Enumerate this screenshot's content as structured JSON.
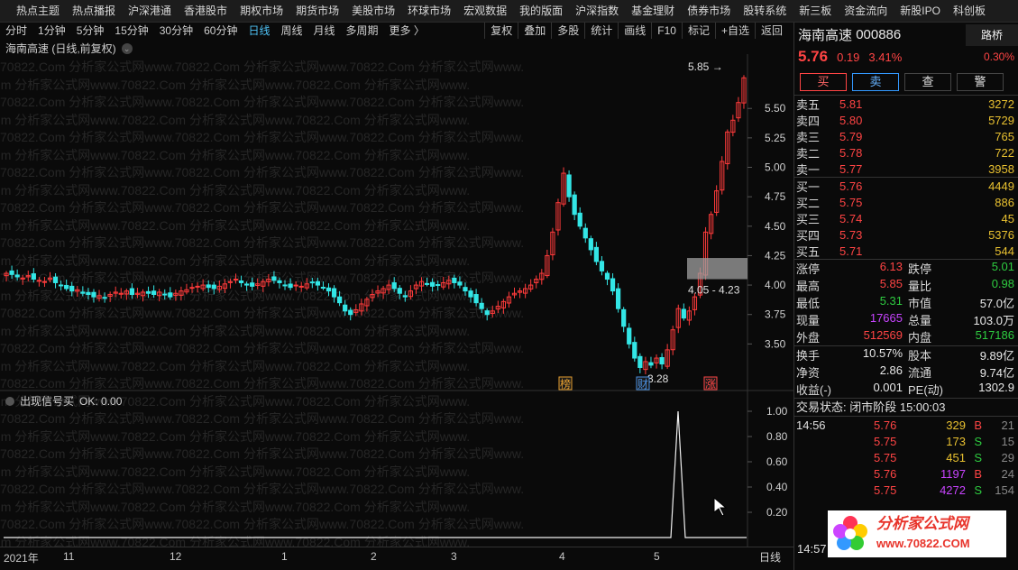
{
  "topnav": [
    "热点主题",
    "热点播报",
    "沪深港通",
    "香港股市",
    "期权市场",
    "期货市场",
    "美股市场",
    "环球市场",
    "宏观数据",
    "我的版面",
    "沪深指数",
    "基金理财",
    "债券市场",
    "股转系统",
    "新三板",
    "资金流向",
    "新股IPO",
    "科创板"
  ],
  "toolbar": {
    "periods": [
      "分时",
      "1分钟",
      "5分钟",
      "15分钟",
      "30分钟",
      "60分钟",
      "日线",
      "周线",
      "月线",
      "多周期",
      "更多 〉"
    ],
    "active": "日线",
    "right": [
      "复权",
      "叠加",
      "多股",
      "统计",
      "画线",
      "F10",
      "标记",
      "+自选",
      "返回"
    ]
  },
  "chart_title": "海南高速 (日线,前复权)",
  "watermark": "70822.Com 分析家公式网www.70822.Com 分析家公式网www.70822.Com 分析家公式网www.",
  "chart_data": {
    "type": "candlestick",
    "price_ticks": [
      5.5,
      5.25,
      5.0,
      4.75,
      4.5,
      4.25,
      4.0,
      3.75,
      3.5
    ],
    "annotations": {
      "high_label": "5.85",
      "low_label": "←3.28",
      "range_label": "4.05 - 4.23"
    },
    "markers": [
      "榜",
      "财",
      "涨"
    ],
    "x_labels": [
      "2021年",
      "11",
      "12",
      "1",
      "2",
      "3",
      "4",
      "5"
    ],
    "closes": [
      4.1,
      4.09,
      4.07,
      4.06,
      4.08,
      4.05,
      4.04,
      4.03,
      4.06,
      4.02,
      4.0,
      3.97,
      3.95,
      3.96,
      3.93,
      3.92,
      3.9,
      3.91,
      3.89,
      3.92,
      3.94,
      3.93,
      3.95,
      3.92,
      3.93,
      3.94,
      3.93,
      3.92,
      3.94,
      3.92,
      3.9,
      3.93,
      3.95,
      3.96,
      3.98,
      3.99,
      4.0,
      3.98,
      3.97,
      3.99,
      4.01,
      4.03,
      4.05,
      4.02,
      4.0,
      3.99,
      4.01,
      4.03,
      4.05,
      4.04,
      4.02,
      4.0,
      3.98,
      4.0,
      3.99,
      4.01,
      4.02,
      4.0,
      3.98,
      3.95,
      3.9,
      3.85,
      3.78,
      3.75,
      3.79,
      3.84,
      3.88,
      3.92,
      3.95,
      3.97,
      4.0,
      3.97,
      3.93,
      3.9,
      3.95,
      4.0,
      4.03,
      4.01,
      3.99,
      4.0,
      4.02,
      4.04,
      4.02,
      4.0,
      3.95,
      3.9,
      3.85,
      3.8,
      3.75,
      3.78,
      3.82,
      3.86,
      3.9,
      3.93,
      3.95,
      3.97,
      4.0,
      4.05,
      4.1,
      4.25,
      4.45,
      4.7,
      4.95,
      4.75,
      4.6,
      4.5,
      4.4,
      4.3,
      4.2,
      4.12,
      4.05,
      3.95,
      3.8,
      3.65,
      3.5,
      3.38,
      3.3,
      3.35,
      3.32,
      3.38,
      3.33,
      3.45,
      3.62,
      3.8,
      3.72,
      3.78,
      3.9,
      4.1,
      4.45,
      4.6,
      4.8,
      5.05,
      5.3,
      5.4,
      5.55,
      5.76
    ],
    "signal": {
      "label": "出现信号买",
      "ok": "OK: 0.00",
      "ticks": [
        1.0,
        0.8,
        0.6,
        0.4,
        0.2
      ]
    }
  },
  "sidebar": {
    "name": "海南高速",
    "code": "000886",
    "tag": "路桥",
    "last": "5.76",
    "chg": "0.19",
    "pct": "3.41%",
    "pct2": "0.30%",
    "buttons": [
      "买",
      "卖",
      "查",
      "警"
    ],
    "asks": [
      {
        "lbl": "卖五",
        "px": "5.81",
        "vol": "3272"
      },
      {
        "lbl": "卖四",
        "px": "5.80",
        "vol": "5729"
      },
      {
        "lbl": "卖三",
        "px": "5.79",
        "vol": "765"
      },
      {
        "lbl": "卖二",
        "px": "5.78",
        "vol": "722"
      },
      {
        "lbl": "卖一",
        "px": "5.77",
        "vol": "3958"
      }
    ],
    "bids": [
      {
        "lbl": "买一",
        "px": "5.76",
        "vol": "4449"
      },
      {
        "lbl": "买二",
        "px": "5.75",
        "vol": "886"
      },
      {
        "lbl": "买三",
        "px": "5.74",
        "vol": "45"
      },
      {
        "lbl": "买四",
        "px": "5.73",
        "vol": "5376"
      },
      {
        "lbl": "买五",
        "px": "5.71",
        "vol": "544"
      }
    ],
    "stats1": [
      [
        "涨停",
        "6.13",
        "red",
        "跌停",
        "5.01",
        "green"
      ],
      [
        "最高",
        "5.85",
        "red",
        "量比",
        "0.98",
        "green"
      ],
      [
        "最低",
        "5.31",
        "green",
        "市值",
        "57.0亿",
        "white"
      ],
      [
        "现量",
        "17665",
        "purple",
        "总量",
        "103.0万",
        "white"
      ],
      [
        "外盘",
        "512569",
        "red",
        "内盘",
        "517186",
        "green"
      ]
    ],
    "stats2": [
      [
        "换手",
        "10.57%",
        "white",
        "股本",
        "9.89亿",
        "white"
      ],
      [
        "净资",
        "2.86",
        "white",
        "流通",
        "9.74亿",
        "white"
      ],
      [
        "收益(-)",
        "0.001",
        "white",
        "PE(动)",
        "1302.9",
        "white"
      ]
    ],
    "trade_status": "交易状态: 闭市阶段 15:00:03",
    "ticks": [
      {
        "t": "14:56",
        "p": "5.76",
        "v": "329",
        "vc": "#e8c030",
        "bs": "B",
        "n": "21"
      },
      {
        "t": "",
        "p": "5.75",
        "v": "173",
        "vc": "#e8c030",
        "bs": "S",
        "n": "15"
      },
      {
        "t": "",
        "p": "5.75",
        "v": "451",
        "vc": "#e8c030",
        "bs": "S",
        "n": "29"
      },
      {
        "t": "",
        "p": "5.76",
        "v": "1197",
        "vc": "#c844ff",
        "bs": "B",
        "n": "24"
      },
      {
        "t": "",
        "p": "5.75",
        "v": "4272",
        "vc": "#c844ff",
        "bs": "S",
        "n": "154"
      }
    ],
    "bottom_time": "14:57"
  },
  "period_label": "日线",
  "logo": {
    "line1": "分析家公式网",
    "line2": "www.70822.COM"
  }
}
